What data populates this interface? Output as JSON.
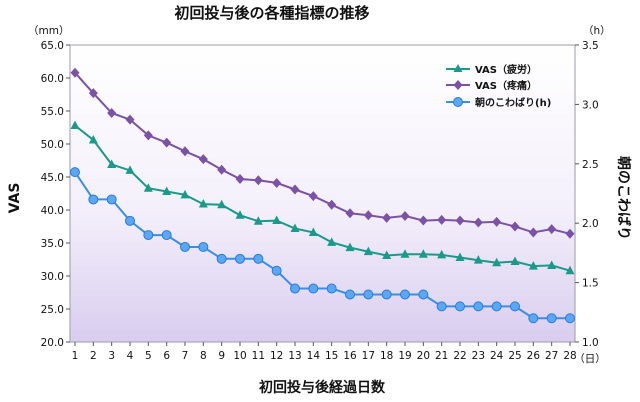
{
  "chart_data": {
    "type": "line",
    "title": "初回投与後の各種指標の推移",
    "xlabel": "初回投与後経過日数",
    "x_unit": "（日）",
    "ylabel_left": "VAS",
    "ylabel_left_unit": "（mm）",
    "ylabel_right": "朝のこわばり",
    "ylabel_right_unit": "（h）",
    "categories": [
      "1",
      "2",
      "3",
      "4",
      "5",
      "6",
      "7",
      "8",
      "9",
      "10",
      "11",
      "12",
      "13",
      "14",
      "15",
      "16",
      "17",
      "18",
      "19",
      "20",
      "21",
      "22",
      "23",
      "24",
      "25",
      "26",
      "27",
      "28"
    ],
    "ylim_left": [
      20,
      65
    ],
    "ylim_right": [
      1.0,
      3.5
    ],
    "yticks_left": [
      "20.0",
      "25.0",
      "30.0",
      "35.0",
      "40.0",
      "45.0",
      "50.0",
      "55.0",
      "60.0",
      "65.0"
    ],
    "yticks_right": [
      "1.0",
      "1.5",
      "2.0",
      "2.5",
      "3.0",
      "3.5"
    ],
    "grid": false,
    "legend_position": "top-right",
    "series": [
      {
        "name": "VAS（疲労）",
        "axis": "left",
        "color": "#1a9a8a",
        "marker": "triangle",
        "values": [
          52.8,
          50.6,
          46.9,
          46.0,
          43.3,
          42.8,
          42.3,
          40.9,
          40.8,
          39.2,
          38.3,
          38.4,
          37.2,
          36.6,
          35.1,
          34.3,
          33.7,
          33.1,
          33.3,
          33.3,
          33.2,
          32.8,
          32.4,
          32.0,
          32.2,
          31.5,
          31.6,
          30.8
        ]
      },
      {
        "name": "VAS（疼痛）",
        "axis": "left",
        "color": "#7b52a6",
        "marker": "diamond",
        "values": [
          60.8,
          57.7,
          54.7,
          53.7,
          51.3,
          50.2,
          48.9,
          47.7,
          46.1,
          44.7,
          44.5,
          44.1,
          43.1,
          42.1,
          40.8,
          39.5,
          39.2,
          38.8,
          39.1,
          38.4,
          38.5,
          38.4,
          38.1,
          38.2,
          37.5,
          36.6,
          37.1,
          36.4
        ]
      },
      {
        "name": "朝のこわばり(h)",
        "axis": "right",
        "color": "#3a8ee8",
        "marker": "circle",
        "values": [
          2.43,
          2.2,
          2.2,
          2.02,
          1.9,
          1.9,
          1.8,
          1.8,
          1.7,
          1.7,
          1.7,
          1.6,
          1.45,
          1.45,
          1.45,
          1.4,
          1.4,
          1.4,
          1.4,
          1.4,
          1.3,
          1.3,
          1.3,
          1.3,
          1.3,
          1.2,
          1.2,
          1.2
        ]
      }
    ]
  }
}
